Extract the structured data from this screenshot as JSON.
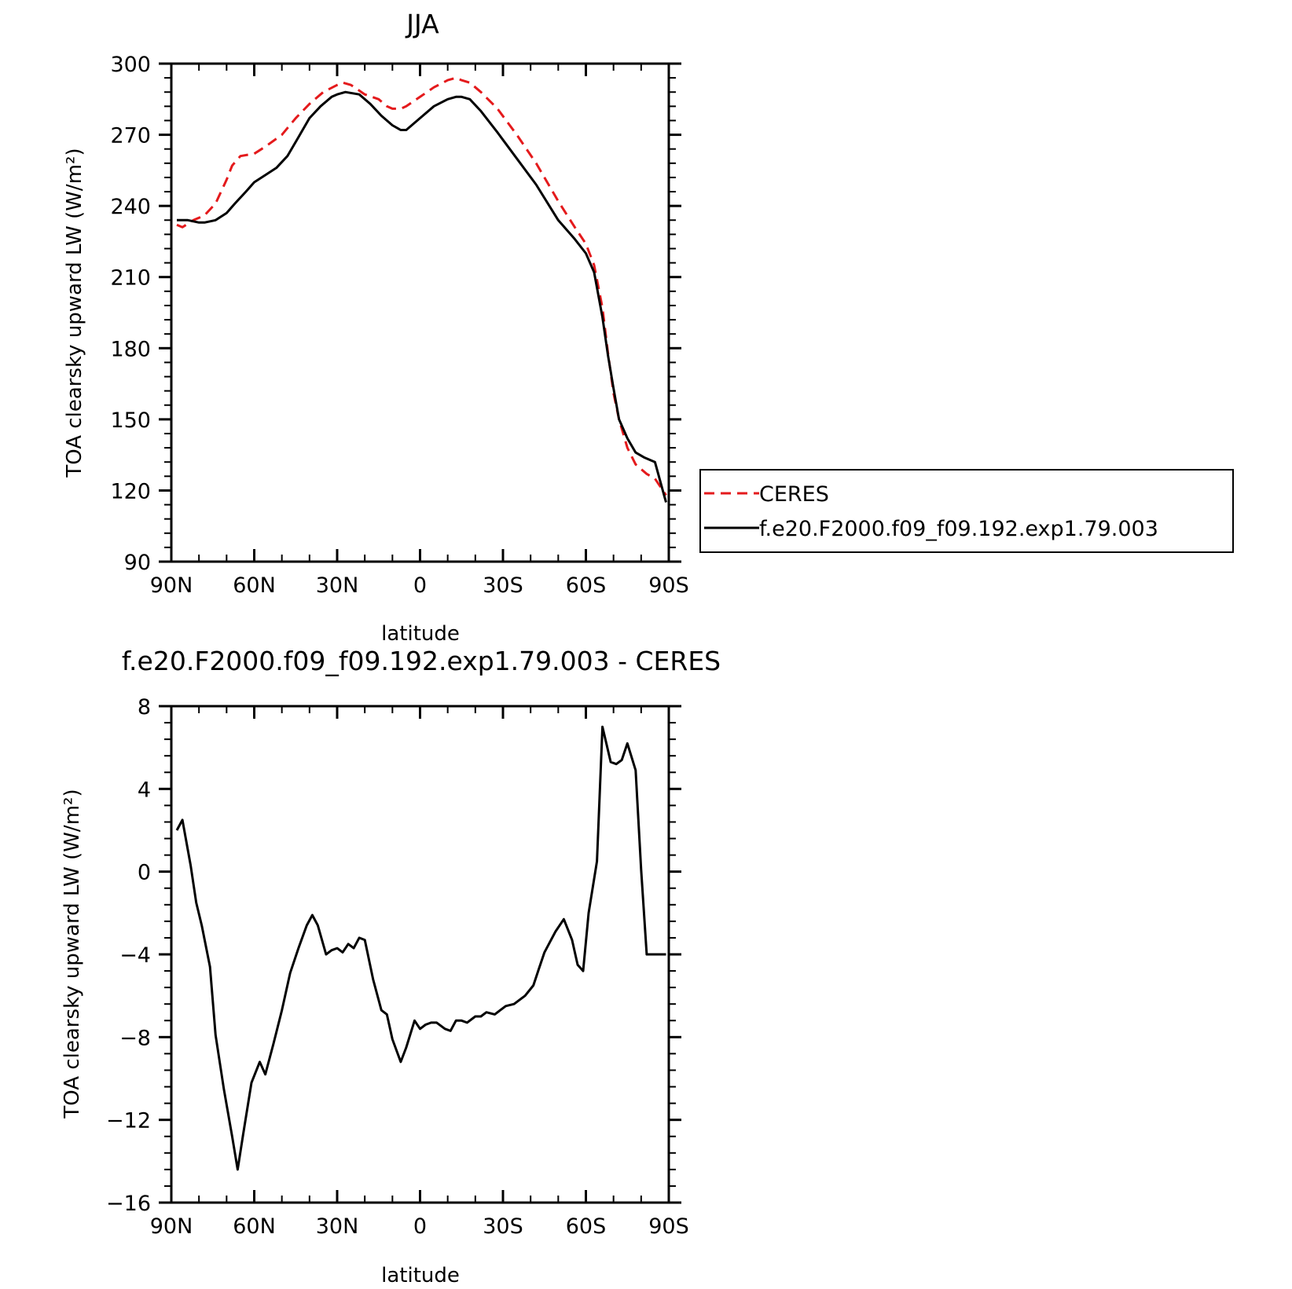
{
  "colors": {
    "ceres": "#e41a1c",
    "model": "#000000"
  },
  "chart_data": [
    {
      "type": "line",
      "title": "JJA",
      "xlabel": "latitude",
      "ylabel": "TOA clearsky upward LW (W/m²)",
      "xlim": [
        90,
        -90
      ],
      "ylim": [
        90,
        300
      ],
      "xticks": [
        90,
        60,
        30,
        0,
        -30,
        -60,
        -90
      ],
      "xtick_labels": [
        "90N",
        "60N",
        "30N",
        "0",
        "30S",
        "60S",
        "90S"
      ],
      "yticks": [
        90,
        120,
        150,
        180,
        210,
        240,
        270,
        300
      ],
      "ytick_labels": [
        "90",
        "120",
        "150",
        "180",
        "210",
        "240",
        "270",
        "300"
      ],
      "legend": "right",
      "series": [
        {
          "name": "CERES",
          "style": "dashed",
          "color": "#e41a1c",
          "x": [
            88,
            86,
            82,
            78,
            74,
            70,
            68,
            65,
            60,
            56,
            50,
            45,
            40,
            35,
            30,
            28,
            25,
            20,
            15,
            12,
            10,
            7,
            5,
            0,
            -5,
            -10,
            -13,
            -15,
            -18,
            -22,
            -28,
            -35,
            -42,
            -50,
            -56,
            -60,
            -63,
            -66,
            -68,
            -70,
            -72,
            -75,
            -78,
            -82,
            -85,
            -89
          ],
          "values": [
            232,
            231,
            234,
            236,
            241,
            251,
            257,
            261,
            262,
            265,
            270,
            277,
            283,
            288,
            291,
            292,
            291,
            287,
            285,
            282,
            281,
            281,
            282,
            286,
            290,
            293,
            294,
            293,
            292,
            288,
            281,
            270,
            258,
            242,
            231,
            224,
            215,
            197,
            178,
            161,
            150,
            138,
            131,
            127,
            125,
            118
          ]
        },
        {
          "name": "f.e20.F2000.f09_f09.192.exp1.79.003",
          "style": "solid",
          "color": "#000000",
          "x": [
            88,
            84,
            80,
            78,
            74,
            70,
            67,
            63,
            60,
            56,
            52,
            48,
            44,
            40,
            36,
            32,
            30,
            27,
            22,
            18,
            14,
            10,
            7,
            5,
            0,
            -5,
            -10,
            -13,
            -15,
            -18,
            -22,
            -28,
            -35,
            -42,
            -50,
            -56,
            -60,
            -63,
            -66,
            -68,
            -70,
            -72,
            -75,
            -78,
            -81,
            -85,
            -89
          ],
          "values": [
            234,
            234,
            233,
            233,
            234,
            237,
            241,
            246,
            250,
            253,
            256,
            261,
            269,
            277,
            282,
            286,
            287,
            288,
            287,
            283,
            278,
            274,
            272,
            272,
            277,
            282,
            285,
            286,
            286,
            285,
            280,
            271,
            260,
            249,
            234,
            226,
            220,
            212,
            193,
            177,
            163,
            150,
            142,
            136,
            134,
            132,
            115
          ]
        }
      ]
    },
    {
      "type": "line",
      "title": "f.e20.F2000.f09_f09.192.exp1.79.003 - CERES",
      "xlabel": "latitude",
      "ylabel": "TOA clearsky upward LW (W/m²)",
      "xlim": [
        90,
        -90
      ],
      "ylim": [
        -16,
        8
      ],
      "xticks": [
        90,
        60,
        30,
        0,
        -30,
        -60,
        -90
      ],
      "xtick_labels": [
        "90N",
        "60N",
        "30N",
        "0",
        "30S",
        "60S",
        "90S"
      ],
      "yticks": [
        -16,
        -12,
        -8,
        -4,
        0,
        4,
        8
      ],
      "ytick_labels": [
        "-16",
        "-12",
        "-8",
        "-4",
        "0",
        "4",
        "8"
      ],
      "series": [
        {
          "color": "#000000",
          "style": "solid",
          "x": [
            88,
            86,
            83,
            81,
            79,
            76,
            74,
            71,
            68,
            66,
            64,
            61,
            58,
            56,
            53,
            50,
            47,
            44,
            41,
            39,
            37,
            34,
            32,
            30,
            28,
            26,
            24,
            22,
            20,
            17,
            14,
            12,
            10,
            7,
            5,
            2,
            0,
            -2,
            -4,
            -6,
            -9,
            -11,
            -13,
            -15,
            -17,
            -20,
            -22,
            -24,
            -27,
            -29,
            -31,
            -34,
            -36,
            -38,
            -41,
            -43,
            -45,
            -47,
            -49,
            -52,
            -55,
            -57,
            -59,
            -61,
            -64,
            -66,
            -69,
            -71,
            -73,
            -75,
            -78,
            -80,
            -82,
            -84,
            -87,
            -89
          ],
          "values": [
            2,
            2.5,
            0.3,
            -1.5,
            -2.6,
            -4.6,
            -7.9,
            -10.5,
            -12.8,
            -14.4,
            -12.7,
            -10.2,
            -9.2,
            -9.8,
            -8.3,
            -6.7,
            -4.9,
            -3.7,
            -2.6,
            -2.1,
            -2.6,
            -4.0,
            -3.8,
            -3.7,
            -3.9,
            -3.5,
            -3.7,
            -3.2,
            -3.3,
            -5.2,
            -6.7,
            -6.9,
            -8.1,
            -9.2,
            -8.5,
            -7.2,
            -7.6,
            -7.4,
            -7.3,
            -7.3,
            -7.6,
            -7.7,
            -7.2,
            -7.2,
            -7.3,
            -7.0,
            -7.0,
            -6.8,
            -6.9,
            -6.7,
            -6.5,
            -6.4,
            -6.2,
            -6.0,
            -5.5,
            -4.7,
            -3.9,
            -3.4,
            -2.9,
            -2.3,
            -3.3,
            -4.5,
            -4.8,
            -2.0,
            0.5,
            7.0,
            5.3,
            5.2,
            5.4,
            6.2,
            4.9,
            0.1,
            -4.0,
            -4.0,
            -4.0,
            -4.0
          ]
        }
      ]
    }
  ]
}
